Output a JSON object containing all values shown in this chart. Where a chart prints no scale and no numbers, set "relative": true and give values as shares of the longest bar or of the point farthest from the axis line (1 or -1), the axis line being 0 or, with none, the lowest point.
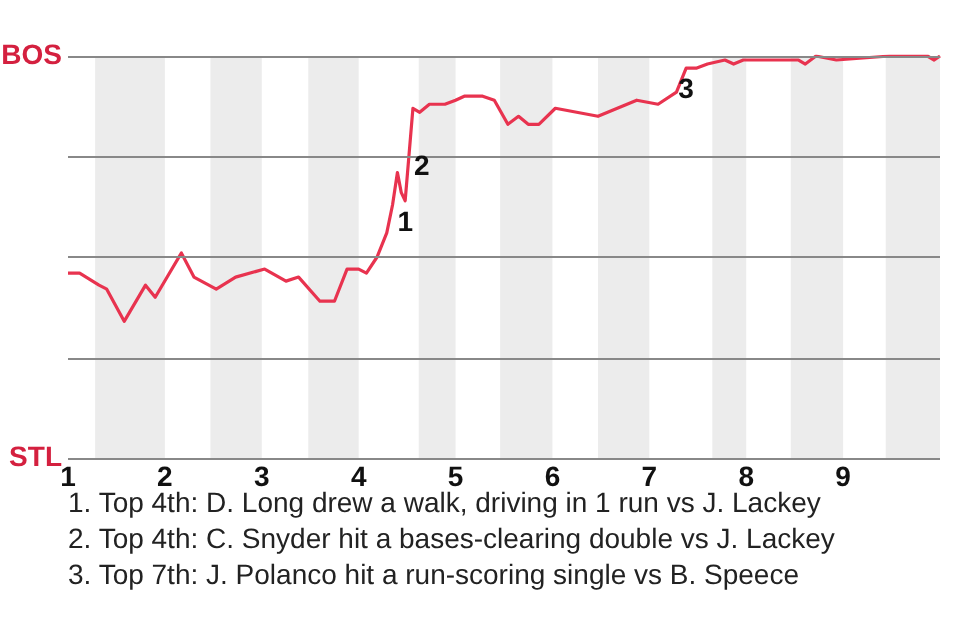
{
  "chart_data": {
    "type": "line",
    "relative": true,
    "x": [
      1,
      1.12,
      1.32,
      1.4,
      1.58,
      1.8,
      1.9,
      2.17,
      2.3,
      2.53,
      2.73,
      3.03,
      3.25,
      3.38,
      3.6,
      3.75,
      3.88,
      4,
      4.08,
      4.19,
      4.29,
      4.35,
      4.4,
      4.44,
      4.48,
      4.56,
      4.63,
      4.73,
      4.89,
      5,
      5.09,
      5.28,
      5.4,
      5.54,
      5.65,
      5.75,
      5.86,
      6.03,
      6.47,
      6.87,
      7.09,
      7.28,
      7.38,
      7.49,
      7.6,
      7.78,
      7.87,
      7.97,
      8.54,
      8.61,
      8.72,
      8.93,
      9.48,
      9.87,
      9.94,
      10
    ],
    "series": [
      {
        "color": "#e8334f",
        "values": [
          0.46,
          0.46,
          0.43,
          0.42,
          0.34,
          0.43,
          0.4,
          0.51,
          0.45,
          0.42,
          0.45,
          0.47,
          0.44,
          0.45,
          0.39,
          0.39,
          0.47,
          0.47,
          0.46,
          0.5,
          0.56,
          0.63,
          0.71,
          0.66,
          0.64,
          0.87,
          0.86,
          0.88,
          0.88,
          0.89,
          0.9,
          0.9,
          0.89,
          0.83,
          0.85,
          0.83,
          0.83,
          0.87,
          0.85,
          0.89,
          0.88,
          0.91,
          0.97,
          0.97,
          0.98,
          0.99,
          0.98,
          0.99,
          0.99,
          0.98,
          1,
          0.99,
          1,
          1,
          0.99,
          1
        ]
      }
    ],
    "xlim": [
      1,
      10
    ],
    "xticks": [
      1,
      2,
      3,
      4,
      5,
      6,
      7,
      8,
      9
    ],
    "marker": "none",
    "line_style": "solid",
    "ref_lines": [
      {
        "axis": "y",
        "value": 0,
        "color": "#888888"
      },
      {
        "axis": "y",
        "value": 0.25,
        "color": "#888888"
      },
      {
        "axis": "y",
        "value": 0.5,
        "color": "#888888"
      },
      {
        "axis": "y",
        "value": 0.75,
        "color": "#888888"
      },
      {
        "axis": "y",
        "value": 1,
        "color": "#888888"
      }
    ],
    "bands": [
      {
        "axis": "x",
        "from": 1.28,
        "to": 2,
        "color": "#ececec"
      },
      {
        "axis": "x",
        "from": 2.47,
        "to": 3,
        "color": "#ececec"
      },
      {
        "axis": "x",
        "from": 3.48,
        "to": 4,
        "color": "#ececec"
      },
      {
        "axis": "x",
        "from": 4.62,
        "to": 5,
        "color": "#ececec"
      },
      {
        "axis": "x",
        "from": 5.46,
        "to": 6,
        "color": "#ececec"
      },
      {
        "axis": "x",
        "from": 6.47,
        "to": 7,
        "color": "#ececec"
      },
      {
        "axis": "x",
        "from": 7.65,
        "to": 8,
        "color": "#ececec"
      },
      {
        "axis": "x",
        "from": 8.46,
        "to": 9,
        "color": "#ececec"
      },
      {
        "axis": "x",
        "from": 9.44,
        "to": 10,
        "color": "#ececec"
      }
    ],
    "annotations": [
      "BOS",
      "STL",
      {
        "text": "1",
        "x": 4.48,
        "y": 0.64
      },
      {
        "text": "2",
        "x": 4.51,
        "y": 0.73
      },
      {
        "text": "3",
        "x": 7.38,
        "y": 0.97
      },
      "1. Top 4th: D. Long drew a walk, driving in 1 run vs J. Lackey",
      "2. Top 4th: C. Snyder hit a bases-clearing double vs J. Lackey",
      "3. Top 7th: J. Polanco hit a run-scoring single vs B. Speece"
    ]
  }
}
